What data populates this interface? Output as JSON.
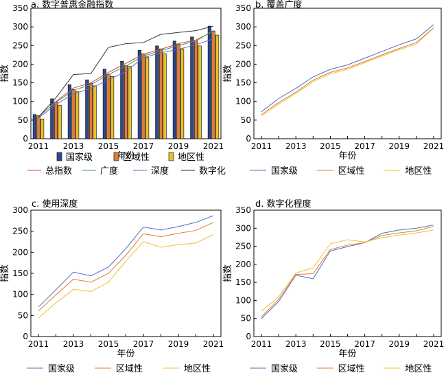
{
  "chart_data": [
    {
      "type": "bar",
      "title": "a. 数字普惠金融指数",
      "xlabel": "年份",
      "ylabel": "指数",
      "ylim": [
        0,
        350
      ],
      "yticks": [
        0,
        50,
        100,
        150,
        200,
        250,
        300,
        350
      ],
      "categories": [
        "2011",
        "2012",
        "2013",
        "2014",
        "2015",
        "2016",
        "2017",
        "2018",
        "2019",
        "2020",
        "2021"
      ],
      "xtick_labels": [
        "2011",
        "2013",
        "2015",
        "2017",
        "2019",
        "2021"
      ],
      "series": [
        {
          "name": "国家级",
          "color": "#2f4b8f",
          "values": [
            65,
            107,
            145,
            158,
            187,
            208,
            237,
            249,
            262,
            273,
            302
          ]
        },
        {
          "name": "区域性",
          "color": "#e07b39",
          "values": [
            62,
            98,
            132,
            149,
            173,
            196,
            228,
            241,
            254,
            262,
            289
          ]
        },
        {
          "name": "地区性",
          "color": "#e8c12c",
          "values": [
            53,
            90,
            126,
            142,
            167,
            194,
            219,
            228,
            241,
            249,
            278
          ]
        }
      ],
      "lines": [
        {
          "name": "总指数",
          "color": "#e04040",
          "values": [
            58,
            100,
            136,
            150,
            178,
            202,
            227,
            240,
            255,
            265,
            288
          ]
        },
        {
          "name": "广度",
          "color": "#3fa34d",
          "values": [
            60,
            98,
            130,
            145,
            172,
            195,
            222,
            236,
            250,
            262,
            290
          ]
        },
        {
          "name": "深度",
          "color": "#6a6ac8",
          "values": [
            55,
            92,
            120,
            135,
            158,
            180,
            218,
            230,
            240,
            252,
            268
          ]
        },
        {
          "name": "数字化",
          "color": "#333333",
          "values": [
            58,
            110,
            172,
            175,
            245,
            255,
            258,
            280,
            285,
            290,
            302
          ]
        }
      ]
    },
    {
      "type": "line",
      "title": "b. 覆盖广度",
      "xlabel": "年份",
      "ylabel": "指数",
      "ylim": [
        0,
        350
      ],
      "yticks": [
        0,
        50,
        100,
        150,
        200,
        250,
        300,
        350
      ],
      "x": [
        2011,
        2012,
        2013,
        2014,
        2015,
        2016,
        2017,
        2018,
        2019,
        2020,
        2021
      ],
      "xtick_labels": [
        "2011",
        "2013",
        "2015",
        "2017",
        "2019",
        "2021"
      ],
      "series": [
        {
          "name": "国家级",
          "color": "#4a6fbf",
          "values": [
            72,
            108,
            135,
            166,
            186,
            198,
            216,
            234,
            252,
            268,
            306
          ]
        },
        {
          "name": "区域性",
          "color": "#e07b39",
          "values": [
            65,
            97,
            125,
            157,
            178,
            190,
            207,
            225,
            242,
            258,
            298
          ]
        },
        {
          "name": "地区性",
          "color": "#f0c030",
          "values": [
            61,
            93,
            121,
            153,
            174,
            186,
            204,
            222,
            239,
            254,
            297
          ]
        }
      ]
    },
    {
      "type": "line",
      "title": "c. 使用深度",
      "xlabel": "年份",
      "ylabel": "指数",
      "ylim": [
        0,
        300
      ],
      "yticks": [
        0,
        50,
        100,
        150,
        200,
        250,
        300
      ],
      "x": [
        2011,
        2012,
        2013,
        2014,
        2015,
        2016,
        2017,
        2018,
        2019,
        2020,
        2021
      ],
      "xtick_labels": [
        "2011",
        "2013",
        "2015",
        "2017",
        "2019",
        "2021"
      ],
      "series": [
        {
          "name": "国家级",
          "color": "#4a6fbf",
          "values": [
            70,
            111,
            153,
            144,
            165,
            209,
            260,
            253,
            261,
            271,
            287
          ]
        },
        {
          "name": "区域性",
          "color": "#e07b39",
          "values": [
            61,
            99,
            136,
            129,
            150,
            193,
            244,
            237,
            245,
            252,
            271
          ]
        },
        {
          "name": "地区性",
          "color": "#f0c030",
          "values": [
            44,
            80,
            112,
            107,
            129,
            179,
            225,
            212,
            218,
            222,
            242
          ]
        }
      ]
    },
    {
      "type": "line",
      "title": "d. 数字化程度",
      "xlabel": "年份",
      "ylabel": "指数",
      "ylim": [
        0,
        350
      ],
      "yticks": [
        0,
        50,
        100,
        150,
        200,
        250,
        300,
        350
      ],
      "x": [
        2011,
        2012,
        2013,
        2014,
        2015,
        2016,
        2017,
        2018,
        2019,
        2020,
        2021
      ],
      "xtick_labels": [
        "2011",
        "2013",
        "2015",
        "2017",
        "2019",
        "2021"
      ],
      "series": [
        {
          "name": "国家级",
          "color": "#4a6fbf",
          "values": [
            50,
            97,
            170,
            160,
            237,
            249,
            260,
            286,
            295,
            300,
            309
          ]
        },
        {
          "name": "区域性",
          "color": "#e07b39",
          "values": [
            55,
            103,
            172,
            174,
            241,
            253,
            260,
            280,
            287,
            293,
            305
          ]
        },
        {
          "name": "地区性",
          "color": "#f0c030",
          "values": [
            70,
            110,
            176,
            190,
            257,
            268,
            262,
            274,
            281,
            287,
            295
          ]
        }
      ]
    }
  ]
}
